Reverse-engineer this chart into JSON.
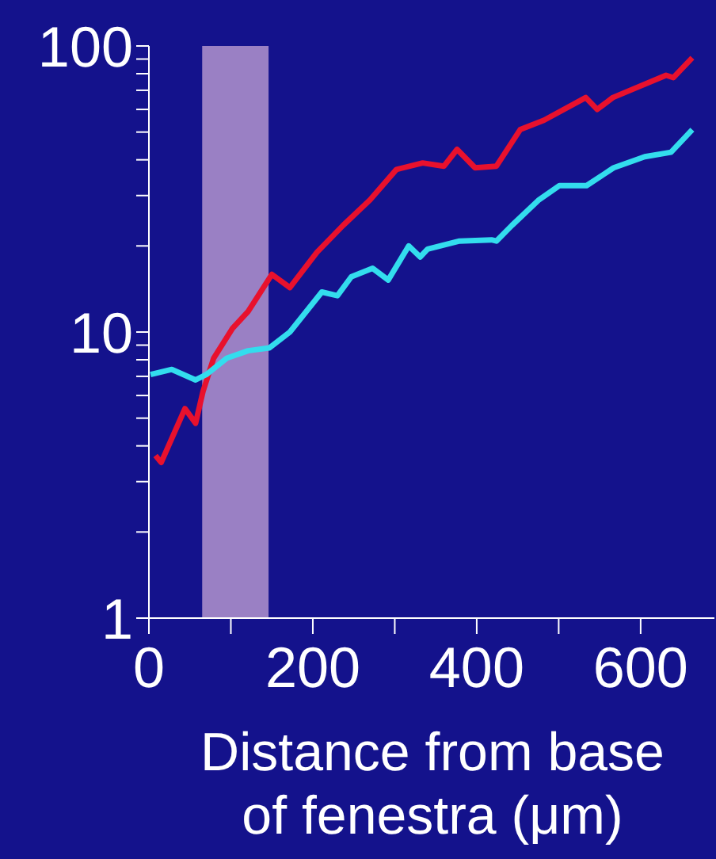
{
  "chart_data": {
    "type": "line",
    "xlabel": "Distance from base\nof fenestra (μm)",
    "log": "y",
    "grid": false,
    "legend": false,
    "marker": "none",
    "line_style": "solid",
    "xlim": [
      0,
      690
    ],
    "xticks": [
      0,
      {
        "value": 100,
        "label": null
      },
      200,
      {
        "value": 300,
        "label": null
      },
      400,
      {
        "value": 500,
        "label": null
      },
      600
    ],
    "ylim": [
      1,
      100
    ],
    "yticks": [
      1,
      {
        "value": 2,
        "label": null
      },
      {
        "value": 3,
        "label": null
      },
      {
        "value": 4,
        "label": null
      },
      {
        "value": 5,
        "label": null
      },
      {
        "value": 6,
        "label": null
      },
      {
        "value": 7,
        "label": null
      },
      {
        "value": 8,
        "label": null
      },
      {
        "value": 9,
        "label": null
      },
      10,
      {
        "value": 20,
        "label": null
      },
      {
        "value": 30,
        "label": null
      },
      {
        "value": 40,
        "label": null
      },
      {
        "value": 50,
        "label": null
      },
      {
        "value": 60,
        "label": null
      },
      {
        "value": 70,
        "label": null
      },
      {
        "value": 80,
        "label": null
      },
      {
        "value": 90,
        "label": null
      },
      100
    ],
    "bands": [
      {
        "axis": "x",
        "from": 65,
        "to": 146,
        "color": "#9a80c4"
      }
    ],
    "series": [
      {
        "color": "#e8112d",
        "x": [
          8,
          15,
          44,
          57,
          66,
          79,
          102,
          121,
          150,
          172,
          205,
          237,
          270,
          302,
          334,
          360,
          376,
          398,
          424,
          453,
          482,
          533,
          547,
          566,
          631,
          640,
          663
        ],
        "values": [
          3.7,
          3.5,
          5.4,
          4.8,
          6.2,
          8.1,
          10.3,
          11.8,
          15.9,
          14.3,
          19,
          23.6,
          29,
          37,
          39,
          38,
          43.5,
          37.5,
          38,
          51,
          55,
          66,
          60,
          66,
          79,
          77.5,
          91
        ]
      },
      {
        "color": "#33ddee",
        "x": [
          2,
          28,
          57,
          70,
          95,
          121,
          147,
          172,
          211,
          230,
          247,
          273,
          292,
          317,
          331,
          340,
          379,
          418,
          424,
          443,
          476,
          501,
          534,
          567,
          605,
          637,
          663
        ],
        "values": [
          7.1,
          7.4,
          6.8,
          7.1,
          8.1,
          8.6,
          8.8,
          10,
          13.8,
          13.4,
          15.6,
          16.7,
          15.2,
          20,
          18.3,
          19.5,
          20.8,
          21,
          20.8,
          23.6,
          29,
          32.5,
          32.5,
          37.5,
          41,
          42.5,
          51
        ]
      }
    ]
  }
}
